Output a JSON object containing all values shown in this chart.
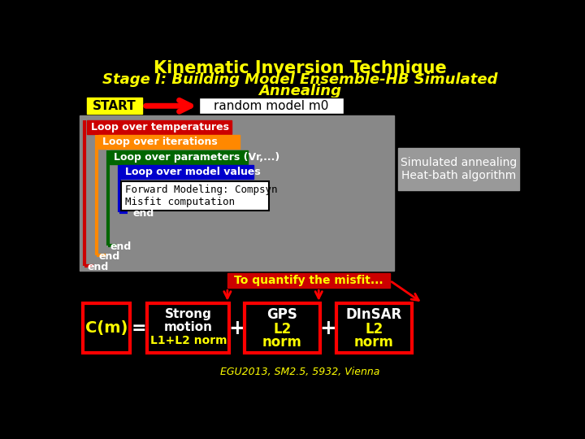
{
  "title_line1": "Kinematic Inversion Technique",
  "title_line2": "Stage I: Building Model Ensemble-HB Simulated",
  "title_line3": "Annealing",
  "title_color": "#FFFF00",
  "bg_color": "#000000",
  "start_label": "START",
  "random_label": "random model m0",
  "loop_labels": [
    "Loop over temperatures",
    "Loop over iterations",
    "Loop over parameters (Vr,...)",
    "Loop over model values"
  ],
  "loop_colors": [
    "#CC0000",
    "#FF8800",
    "#006600",
    "#0000CC"
  ],
  "forward_label": "Forward Modeling: Compsyn\nMisfit computation",
  "sim_anneal_label": "Simulated annealing\nHeat-bath algorithm",
  "misfit_label": "To quantify the misfit...",
  "cm_label": "C(m)",
  "box1_lines": [
    "Strong",
    "motion",
    "L1+L2 norm"
  ],
  "box2_lines": [
    "GPS",
    "L2",
    "norm"
  ],
  "box3_lines": [
    "DInSAR",
    "L2",
    "norm"
  ],
  "footer_label": "EGU2013, SM2.5, 5932, Vienna",
  "gray_color": "#888888",
  "loop_bracket_colors": [
    "#CC0000",
    "#FF8800",
    "#006600",
    "#0000CC"
  ]
}
